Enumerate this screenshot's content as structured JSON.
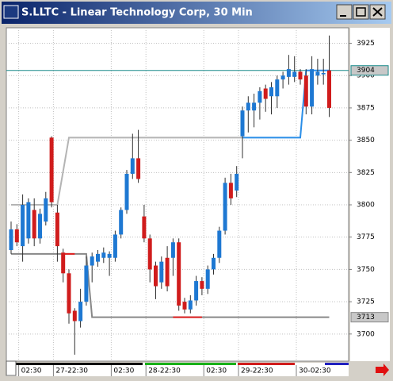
{
  "chart_data": {
    "type": "candlestick",
    "title": "S.LLTC - Linear Technology Corp, 30 Min",
    "categories": [
      null,
      null,
      "02:30",
      null,
      null,
      null,
      null,
      null,
      "27-22:30",
      null,
      null,
      null,
      null,
      null,
      null,
      null,
      null,
      null,
      "02:30",
      null,
      null,
      null,
      null,
      null,
      "28-22:30",
      null,
      null,
      null,
      null,
      null,
      null,
      null,
      null,
      null,
      "02:30",
      null,
      null,
      null,
      null,
      null,
      "29-22:30",
      null,
      null,
      null,
      null,
      null,
      null,
      null,
      null,
      null,
      "30-02:30",
      null,
      null,
      null,
      null,
      null
    ],
    "open": [
      3765,
      3781,
      3768,
      3774,
      3796,
      3774,
      3787,
      3852,
      3794,
      3763,
      3747,
      3718,
      3710,
      3725,
      3753,
      3756,
      3759,
      3759,
      3759,
      3777,
      3796,
      3824,
      3836,
      3791,
      3774,
      3753,
      3740,
      3759,
      3759,
      3771,
      3725,
      3719,
      3726,
      3741,
      3735,
      3750,
      3759,
      3780,
      3817,
      3811,
      3853,
      3873,
      3873,
      3879,
      3890,
      3884,
      3884,
      3897,
      3899,
      3899,
      3903,
      3900,
      3876,
      3900,
      3901,
      3904
    ],
    "high": [
      3787,
      3785,
      3808,
      3805,
      3805,
      3797,
      3810,
      3853,
      3800,
      3766,
      3750,
      3720,
      3735,
      3760,
      3763,
      3765,
      3767,
      3764,
      3780,
      3798,
      3827,
      3855,
      3858,
      3800,
      3777,
      3756,
      3760,
      3768,
      3774,
      3774,
      3728,
      3730,
      3745,
      3744,
      3753,
      3762,
      3783,
      3821,
      3824,
      3830,
      3876,
      3884,
      3886,
      3891,
      3893,
      3895,
      3900,
      3903,
      3916,
      3915,
      3905,
      3905,
      3915,
      3913,
      3913,
      3931
    ],
    "low": [
      3762,
      3768,
      3756,
      3770,
      3768,
      3770,
      3784,
      3798,
      3756,
      3740,
      3708,
      3684,
      3705,
      3722,
      3740,
      3752,
      3755,
      3745,
      3756,
      3774,
      3793,
      3820,
      3817,
      3771,
      3740,
      3727,
      3735,
      3733,
      3745,
      3718,
      3716,
      3716,
      3722,
      3730,
      3731,
      3746,
      3755,
      3777,
      3800,
      3806,
      3836,
      3856,
      3860,
      3866,
      3872,
      3870,
      3875,
      3890,
      3893,
      3895,
      3893,
      3870,
      3870,
      3893,
      3893,
      3868
    ],
    "close": [
      3781,
      3771,
      3800,
      3802,
      3774,
      3793,
      3805,
      3802,
      3768,
      3747,
      3716,
      3710,
      3725,
      3753,
      3760,
      3762,
      3763,
      3762,
      3777,
      3796,
      3824,
      3836,
      3820,
      3774,
      3750,
      3737,
      3756,
      3737,
      3771,
      3722,
      3719,
      3726,
      3741,
      3735,
      3750,
      3759,
      3780,
      3817,
      3805,
      3824,
      3873,
      3879,
      3879,
      3888,
      3882,
      3891,
      3897,
      3900,
      3905,
      3903,
      3897,
      3876,
      3905,
      3903,
      3902,
      3875
    ],
    "up_color": "#1e78d2",
    "down_color": "#d01c1c",
    "ylim": [
      3679,
      3937
    ],
    "yticks": [
      3700,
      3725,
      3750,
      3775,
      3800,
      3825,
      3850,
      3875,
      3900,
      3925
    ],
    "grid": true,
    "overlays": [
      {
        "color": "#b4b4b4",
        "values": [
          3800,
          3800,
          3800,
          3800,
          3800,
          3800,
          3800,
          3800,
          3800,
          3826,
          3852,
          3852,
          3852,
          3852,
          3852,
          3852,
          3852,
          3852,
          3852,
          3852,
          3852,
          3852,
          3852,
          3852,
          3852,
          3852,
          3852,
          3852,
          3852,
          3852,
          3852,
          3852,
          3852,
          3852,
          3852,
          3852,
          3852,
          3852,
          3852,
          3852,
          3852,
          null,
          null,
          null,
          null,
          null,
          null,
          null,
          null,
          null,
          null,
          null,
          null,
          null,
          null,
          null
        ]
      },
      {
        "color": "#2a8ee8",
        "values": [
          null,
          null,
          null,
          null,
          null,
          null,
          null,
          null,
          null,
          null,
          null,
          null,
          null,
          null,
          null,
          null,
          null,
          null,
          null,
          null,
          null,
          null,
          null,
          null,
          null,
          null,
          null,
          null,
          null,
          null,
          null,
          null,
          null,
          null,
          null,
          null,
          null,
          null,
          null,
          null,
          3852,
          3852,
          3852,
          3852,
          3852,
          3852,
          3852,
          3852,
          3852,
          3852,
          3852,
          3904,
          3904,
          3904,
          3904,
          3904
        ]
      },
      {
        "color": "#888888",
        "values": [
          3762,
          3762,
          3762,
          3762,
          3762,
          3762,
          3762,
          3762,
          3762,
          3762,
          3762,
          3762,
          3762,
          3762,
          3713,
          3713,
          3713,
          3713,
          3713,
          3713,
          3713,
          3713,
          3713,
          3713,
          3713,
          3713,
          3713,
          3713,
          3713,
          3713,
          3713,
          3713,
          3713,
          3713,
          3713,
          3713,
          3713,
          3713,
          3713,
          3713,
          3713,
          3713,
          3713,
          3713,
          3713,
          3713,
          3713,
          3713,
          3713,
          3713,
          3713,
          3713,
          3713,
          3713,
          3713,
          3713
        ]
      },
      {
        "color": "#e02020",
        "values": [
          null,
          null,
          null,
          null,
          null,
          null,
          null,
          null,
          null,
          3762,
          3762,
          3762,
          null,
          null,
          null,
          null,
          null,
          null,
          null,
          null,
          null,
          null,
          null,
          null,
          null,
          null,
          null,
          null,
          3713,
          3713,
          3713,
          3713,
          3713,
          3713,
          null,
          null,
          null,
          null,
          null,
          null,
          null,
          null,
          null,
          null,
          null,
          null,
          null,
          null,
          null,
          null,
          null,
          null,
          null,
          null,
          null,
          null
        ]
      }
    ],
    "markers": [
      {
        "value": 3904,
        "color": "#1a8a8a",
        "line": true
      },
      {
        "value": 3713,
        "color": "#888888",
        "line": false
      }
    ]
  }
}
